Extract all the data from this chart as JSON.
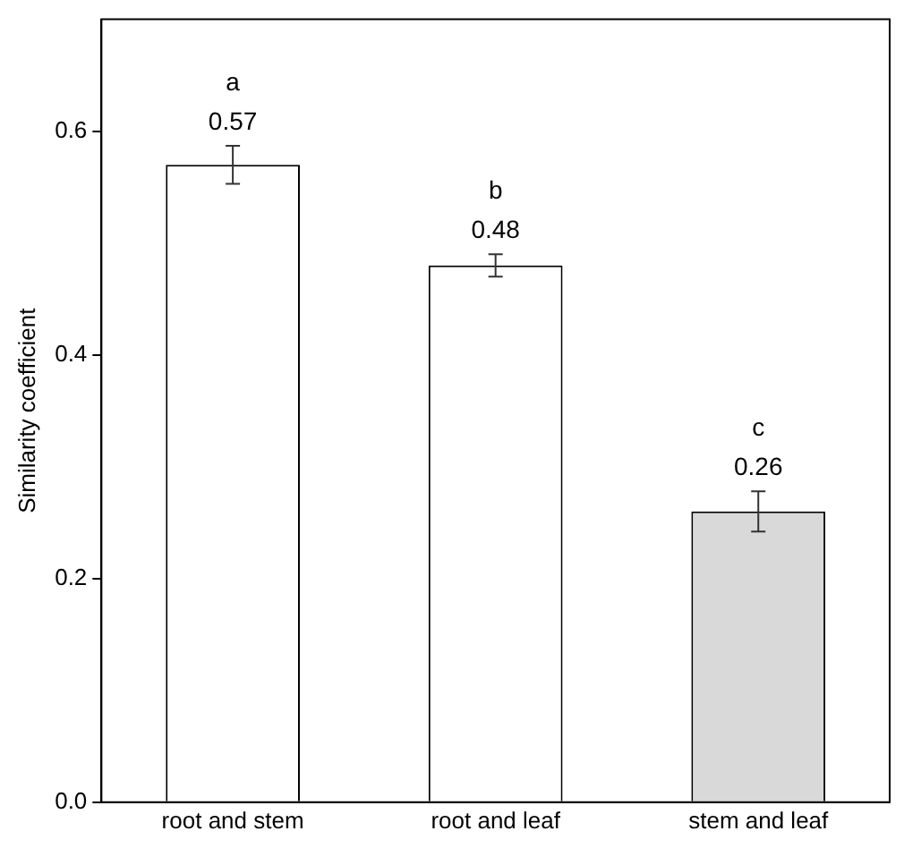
{
  "chart_data": {
    "type": "bar",
    "ylabel": "Similarity coefficient",
    "categories": [
      "root and stem",
      "root and leaf",
      "stem and leaf"
    ],
    "values": [
      0.57,
      0.48,
      0.26
    ],
    "colors": [
      "#ffffff",
      "#ffffff",
      "#d9d9d9"
    ],
    "errors": [
      0.017,
      0.01,
      0.018
    ],
    "data_labels": true,
    "ylim": [
      0,
      0.7
    ],
    "yticks": [
      {
        "value": 0,
        "label": "0.0"
      },
      {
        "value": 0.2,
        "label": "0.2"
      },
      {
        "value": 0.4,
        "label": "0.4"
      },
      {
        "value": 0.6,
        "label": "0.6"
      }
    ],
    "grid": false,
    "annotations": [
      "a",
      "b",
      "c"
    ]
  }
}
